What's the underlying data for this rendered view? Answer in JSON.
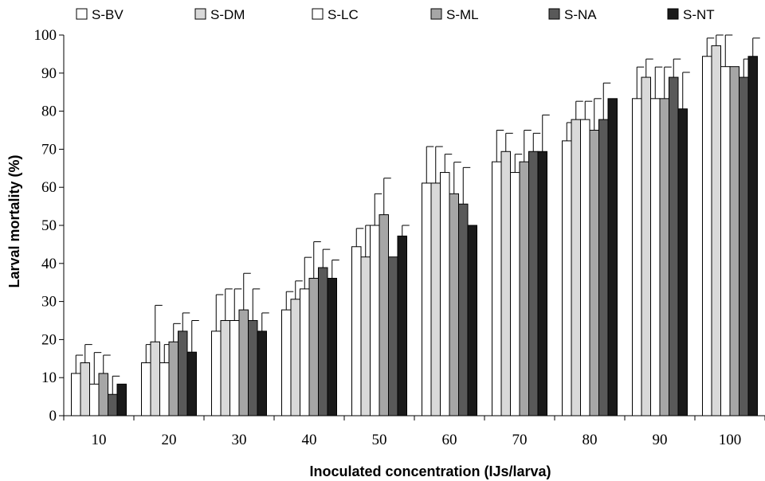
{
  "chart_data": {
    "type": "bar",
    "title": "",
    "xlabel": "Inoculated concentration (IJs/larva)",
    "ylabel": "Larval mortality (%)",
    "ylim": [
      0,
      100
    ],
    "yticks": [
      0,
      10,
      20,
      30,
      40,
      50,
      60,
      70,
      80,
      90,
      100
    ],
    "categories": [
      "10",
      "20",
      "30",
      "40",
      "50",
      "60",
      "70",
      "80",
      "90",
      "100"
    ],
    "legend_position": "top",
    "grid": false,
    "error_bars": "upper only",
    "series": [
      {
        "name": "S-BV",
        "color": "#ffffff",
        "values": [
          11.1,
          13.9,
          22.2,
          27.8,
          44.4,
          61.1,
          66.7,
          72.2,
          83.3,
          94.4
        ],
        "errors": [
          4.8,
          4.8,
          9.6,
          4.8,
          4.8,
          9.6,
          8.3,
          4.8,
          8.3,
          4.8
        ]
      },
      {
        "name": "S-DM",
        "color": "#d9d9d9",
        "values": [
          13.9,
          19.4,
          25.0,
          30.6,
          41.7,
          61.1,
          69.4,
          77.8,
          88.9,
          97.2
        ],
        "errors": [
          4.8,
          9.6,
          8.3,
          4.8,
          8.3,
          9.6,
          4.8,
          4.8,
          4.8,
          4.8
        ]
      },
      {
        "name": "S-LC",
        "color": "#ffffff",
        "values": [
          8.3,
          13.9,
          25.0,
          33.3,
          50.0,
          63.9,
          63.9,
          77.8,
          83.3,
          91.7
        ],
        "errors": [
          8.3,
          4.8,
          8.3,
          8.3,
          8.3,
          4.8,
          4.8,
          4.8,
          8.3,
          8.3
        ]
      },
      {
        "name": "S-ML",
        "color": "#a6a6a6",
        "values": [
          11.1,
          19.4,
          27.8,
          36.1,
          52.8,
          58.3,
          66.7,
          75.0,
          83.3,
          91.7
        ],
        "errors": [
          4.8,
          4.8,
          9.6,
          9.6,
          9.6,
          8.3,
          8.3,
          8.3,
          8.3,
          0
        ]
      },
      {
        "name": "S-NA",
        "color": "#595959",
        "values": [
          5.6,
          22.2,
          25.0,
          38.9,
          41.7,
          55.6,
          69.4,
          77.8,
          88.9,
          88.9
        ],
        "errors": [
          4.8,
          4.8,
          8.3,
          4.8,
          0,
          9.6,
          4.8,
          9.6,
          4.8,
          4.8
        ]
      },
      {
        "name": "S-NT",
        "color": "#1a1a1a",
        "values": [
          8.3,
          16.7,
          22.2,
          36.1,
          47.2,
          50.0,
          69.4,
          83.3,
          80.6,
          94.4
        ],
        "errors": [
          0,
          8.3,
          4.8,
          4.8,
          2.8,
          0,
          9.6,
          0,
          9.6,
          4.8
        ]
      }
    ]
  }
}
